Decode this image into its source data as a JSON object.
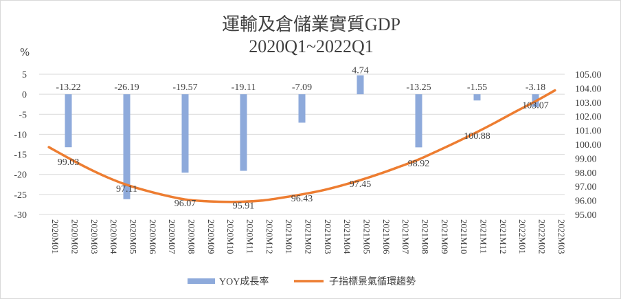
{
  "chart_data": {
    "type": "bar+line",
    "title": "運輸及倉儲業實質GDP",
    "subtitle": "2020Q1~2022Q1",
    "ylabel": "%",
    "ylim": [
      -30,
      5
    ],
    "yticks": [
      5,
      0,
      -5,
      -10,
      -15,
      -20,
      -25,
      -30
    ],
    "y2lim": [
      95,
      105
    ],
    "y2ticks": [
      "105.00",
      "104.00",
      "103.00",
      "102.00",
      "101.00",
      "100.00",
      "99.00",
      "98.00",
      "97.00",
      "96.00",
      "95.00"
    ],
    "categories": [
      "2020M01",
      "2020M02",
      "2020M03",
      "2020M04",
      "2020M05",
      "2020M06",
      "2020M07",
      "2020M08",
      "2020M09",
      "2020M10",
      "2020M11",
      "2020M12",
      "2021M01",
      "2021M02",
      "2021M03",
      "2021M04",
      "2021M05",
      "2021M06",
      "2021M07",
      "2021M08",
      "2021M09",
      "2021M10",
      "2021M11",
      "2021M12",
      "2022M01",
      "2022M02",
      "2022M03"
    ],
    "series": [
      {
        "name": "YOY成長率",
        "type": "bar",
        "axis": "left",
        "color": "#8eaadb",
        "values": [
          null,
          -13.22,
          null,
          null,
          -26.19,
          null,
          null,
          -19.57,
          null,
          null,
          -19.11,
          null,
          null,
          -7.09,
          null,
          null,
          4.74,
          null,
          null,
          -13.25,
          null,
          null,
          -1.55,
          null,
          null,
          -3.18,
          null
        ]
      },
      {
        "name": "子指標景氣循環趨勢",
        "type": "line",
        "axis": "right",
        "color": "#ed7d31",
        "values": [
          99.8,
          99.03,
          98.3,
          97.65,
          97.11,
          96.7,
          96.35,
          96.07,
          95.95,
          95.9,
          95.91,
          96.0,
          96.2,
          96.43,
          96.7,
          97.05,
          97.45,
          97.9,
          98.4,
          98.92,
          99.55,
          100.2,
          100.88,
          101.6,
          102.35,
          103.07,
          103.85
        ],
        "labels": [
          null,
          "99.03",
          null,
          null,
          "97.11",
          null,
          null,
          "96.07",
          null,
          null,
          "95.91",
          null,
          null,
          "96.43",
          null,
          null,
          "97.45",
          null,
          null,
          "98.92",
          null,
          null,
          "100.88",
          null,
          null,
          "103.07",
          null
        ]
      }
    ],
    "grid": true,
    "legend_position": "bottom"
  }
}
